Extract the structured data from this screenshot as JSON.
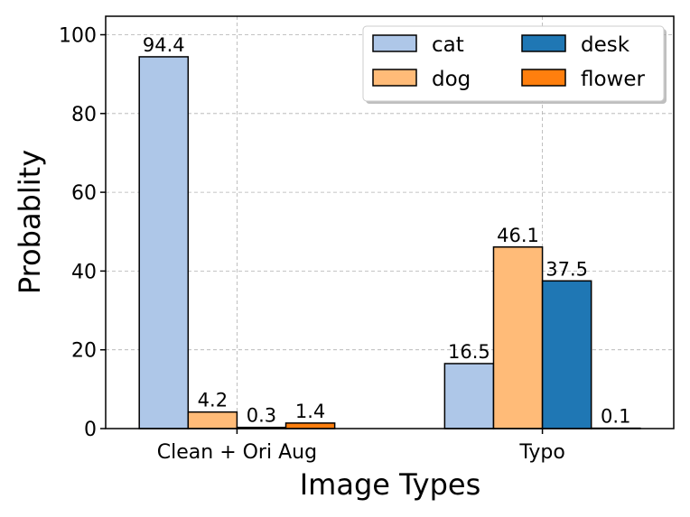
{
  "chart_data": {
    "type": "bar",
    "categories": [
      "Clean + Ori Aug",
      "Typo"
    ],
    "series": [
      {
        "name": "cat",
        "color": "#aec7e8",
        "values": [
          94.4,
          16.5
        ]
      },
      {
        "name": "dog",
        "color": "#ffbb78",
        "values": [
          4.2,
          46.1
        ]
      },
      {
        "name": "desk",
        "color": "#1f77b4",
        "values": [
          0.3,
          37.5
        ]
      },
      {
        "name": "flower",
        "color": "#ff7f0e",
        "values": [
          1.4,
          0.1
        ]
      }
    ],
    "xlabel": "Image Types",
    "ylabel": "Probablity",
    "ylim": [
      0,
      100
    ],
    "yticks": [
      0,
      20,
      40,
      60,
      80,
      100
    ],
    "grid": true,
    "legend": {
      "placement": "top-right",
      "columns": 2
    }
  }
}
